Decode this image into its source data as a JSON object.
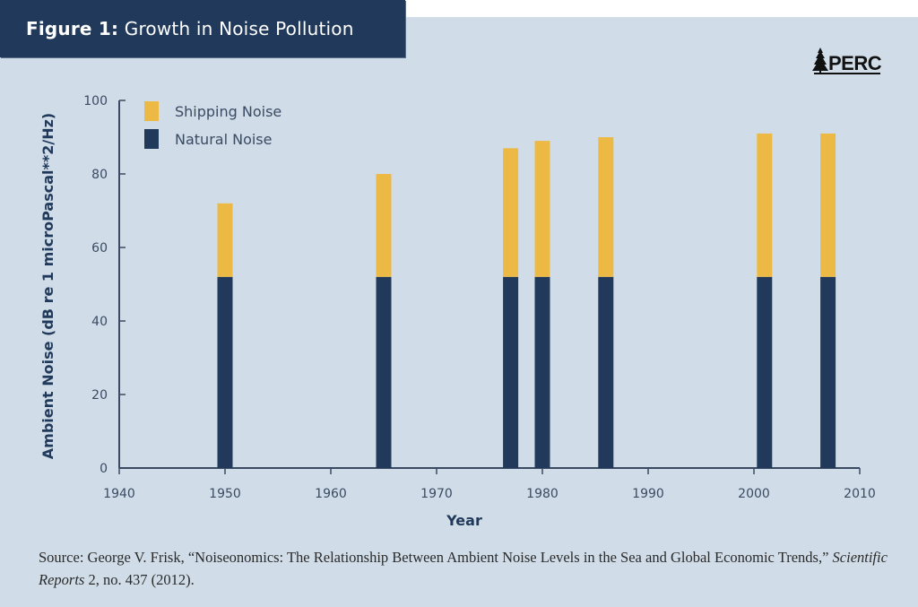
{
  "header": {
    "figure_label": "Figure 1:",
    "title": "Growth in Noise Pollution"
  },
  "logo": {
    "text": "PERC",
    "icon": "pine-tree-icon"
  },
  "colors": {
    "shipping": "#ecb945",
    "natural": "#213a5b",
    "axis": "#3a4a63",
    "background": "#d0dde8"
  },
  "chart_data": {
    "type": "bar",
    "stacked": true,
    "title": "Growth in Noise Pollution",
    "xlabel": "Year",
    "ylabel": "Ambient Noise (dB re 1 microPascal**2/Hz)",
    "xlim": [
      1940,
      2010
    ],
    "ylim": [
      0,
      100
    ],
    "xticks": [
      1940,
      1950,
      1960,
      1970,
      1980,
      1990,
      2000,
      2010
    ],
    "yticks": [
      0,
      20,
      40,
      60,
      80,
      100
    ],
    "legend_position": "top-left",
    "x": [
      1950,
      1965,
      1977,
      1980,
      1986,
      2001,
      2007
    ],
    "series": [
      {
        "name": "Natural Noise",
        "color": "#213a5b",
        "values": [
          52,
          52,
          52,
          52,
          52,
          52,
          52
        ]
      },
      {
        "name": "Shipping Noise",
        "color": "#ecb945",
        "values": [
          20,
          28,
          35,
          37,
          38,
          39,
          39
        ]
      }
    ],
    "totals": [
      72,
      80,
      87,
      89,
      90,
      91,
      91
    ],
    "legend": [
      "Shipping Noise",
      "Natural Noise"
    ],
    "grid": false
  },
  "source": {
    "prefix": "Source: George V. Frisk, “Noiseonomics: The Relationship Between Ambient Noise Levels in the Sea and Global Economic Trends,” ",
    "journal": "Scientific Reports",
    "suffix": " 2, no. 437 (2012)."
  }
}
